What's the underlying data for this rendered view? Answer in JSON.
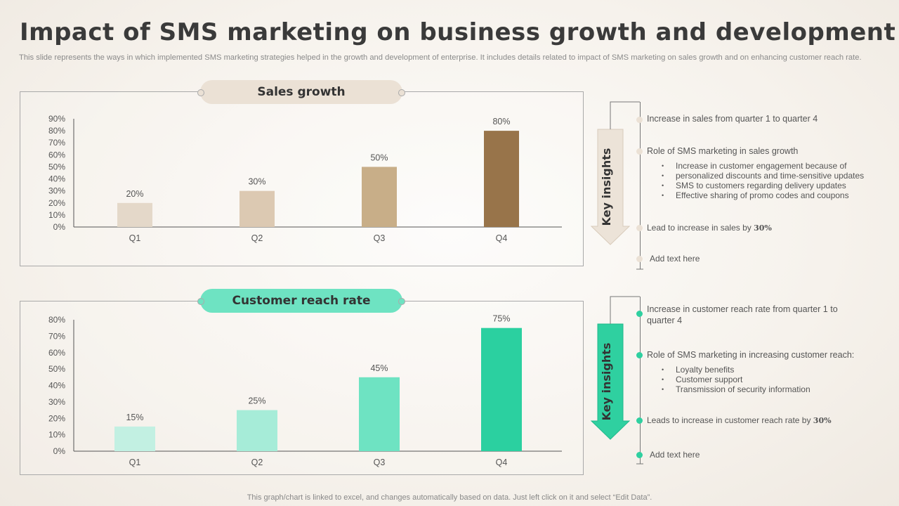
{
  "title": "Impact of SMS marketing on business growth and development",
  "subtitle": "This slide represents the ways in which implemented SMS marketing strategies helped in the growth and development of enterprise. It includes details related to impact of SMS marketing on sales growth and on enhancing customer reach rate.",
  "footer": "This graph/chart is linked to excel, and changes automatically based on data. Just left click on it and select “Edit Data”.",
  "colors": {
    "sales_accent": "#ebe1d5",
    "reach_accent": "#6ee3c2",
    "sales_arrow": "#ece3d8",
    "reach_arrow": "#2fd0a0"
  },
  "chart_data": [
    {
      "type": "bar",
      "title": "Sales growth",
      "categories": [
        "Q1",
        "Q2",
        "Q3",
        "Q4"
      ],
      "values": [
        20,
        30,
        50,
        80
      ],
      "value_labels": [
        "20%",
        "30%",
        "50%",
        "80%"
      ],
      "bar_colors": [
        "#e4d8c9",
        "#dcc9b2",
        "#c8ae88",
        "#98744a"
      ],
      "ylim": [
        0,
        90
      ],
      "yticks": [
        "0%",
        "10%",
        "20%",
        "30%",
        "40%",
        "50%",
        "60%",
        "70%",
        "80%",
        "90%"
      ],
      "grid": false
    },
    {
      "type": "bar",
      "title": "Customer reach rate",
      "categories": [
        "Q1",
        "Q2",
        "Q3",
        "Q4"
      ],
      "values": [
        15,
        25,
        45,
        75
      ],
      "value_labels": [
        "15%",
        "25%",
        "45%",
        "75%"
      ],
      "bar_colors": [
        "#c2f0e2",
        "#a6ecd8",
        "#6ee3c2",
        "#2bd0a0"
      ],
      "ylim": [
        0,
        80
      ],
      "yticks": [
        "0%",
        "10%",
        "20%",
        "30%",
        "40%",
        "50%",
        "60%",
        "70%",
        "80%"
      ],
      "grid": false
    }
  ],
  "sales_insights": {
    "label": "Key insights",
    "item1": "Increase in sales from quarter 1 to quarter 4",
    "item2": "Role of SMS marketing in sales growth",
    "bullets": [
      "Increase in customer engagement because of",
      "personalized discounts and time-sensitive updates",
      "SMS to customers regarding delivery updates",
      "Effective sharing of promo codes and coupons"
    ],
    "item3_prefix": "Lead to increase in sales by ",
    "item3_value": "30%",
    "item4": "Add text here"
  },
  "reach_insights": {
    "label": "Key insights",
    "item1_line1": "Increase in customer reach rate from quarter 1 to",
    "item1_line2": "quarter 4",
    "item2": "Role of SMS marketing in increasing customer reach:",
    "bullets": [
      "Loyalty benefits",
      "Customer support",
      "Transmission of security information"
    ],
    "item3_prefix": "Leads to increase in customer reach rate by ",
    "item3_value": "30%",
    "item4": "Add text here"
  }
}
